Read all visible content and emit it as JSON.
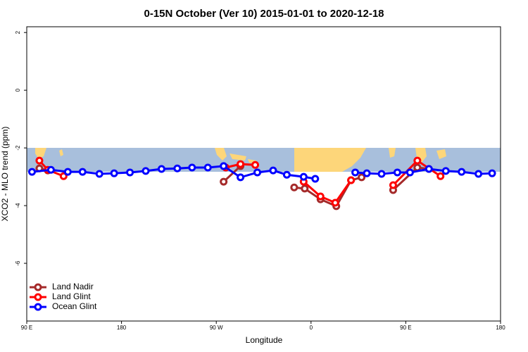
{
  "chart_data": {
    "type": "line",
    "title": "0-15N October (Ver 10)   2015-01-01 to 2020-12-18",
    "x_label": "Longitude",
    "y_label": "XCO2 - MLO trend (ppm)",
    "xlim": [
      90,
      540
    ],
    "xticks": [
      {
        "value": 90,
        "label": "90 E"
      },
      {
        "value": 180,
        "label": "180"
      },
      {
        "value": 270,
        "label": "90 W"
      },
      {
        "value": 360,
        "label": "0"
      },
      {
        "value": 450,
        "label": "90 E"
      },
      {
        "value": 540,
        "label": "180"
      }
    ],
    "ylim": [
      -8,
      2.2
    ],
    "yticks": [
      2,
      0,
      -2,
      -4,
      -6
    ],
    "legend": "bottom-left",
    "series": [
      {
        "name": "Land Nadir",
        "color": "#a52a2a",
        "x": [
          102,
          110,
          200,
          277,
          293,
          330,
          344,
          354,
          369,
          384,
          398,
          408,
          420,
          438,
          461,
          472
        ],
        "values": [
          -2.71,
          -2.78,
          null,
          -3.17,
          -2.63,
          null,
          -3.37,
          -3.41,
          -3.78,
          -4.02,
          -3.12,
          -3.02,
          null,
          -3.46,
          -2.68,
          -2.73
        ]
      },
      {
        "name": "Land Glint",
        "color": "#ff0000",
        "x": [
          102,
          110,
          125,
          200,
          279,
          293,
          307,
          330,
          353,
          369,
          383,
          398,
          420,
          438,
          461,
          483
        ],
        "values": [
          -2.44,
          -2.76,
          -2.98,
          null,
          -2.68,
          -2.56,
          -2.59,
          null,
          -3.17,
          -3.68,
          -3.9,
          -3.12,
          null,
          -3.29,
          -2.44,
          -2.98
        ]
      },
      {
        "name": "Ocean Glint",
        "color": "#0000ff",
        "x": [
          95,
          113,
          129,
          143,
          159,
          173,
          188,
          203,
          218,
          233,
          247,
          262,
          277,
          293,
          309,
          324,
          337,
          353,
          364,
          383,
          402,
          413,
          427,
          442,
          454,
          472,
          488,
          503,
          519,
          532
        ],
        "values": [
          -2.83,
          -2.76,
          -2.83,
          -2.83,
          -2.9,
          -2.88,
          -2.85,
          -2.8,
          -2.73,
          -2.71,
          -2.68,
          -2.68,
          -2.63,
          -3.02,
          -2.85,
          -2.78,
          -2.93,
          -3.0,
          -3.07,
          null,
          -2.85,
          -2.88,
          -2.9,
          -2.85,
          -2.85,
          -2.73,
          -2.8,
          -2.83,
          -2.9,
          -2.88
        ]
      }
    ]
  }
}
